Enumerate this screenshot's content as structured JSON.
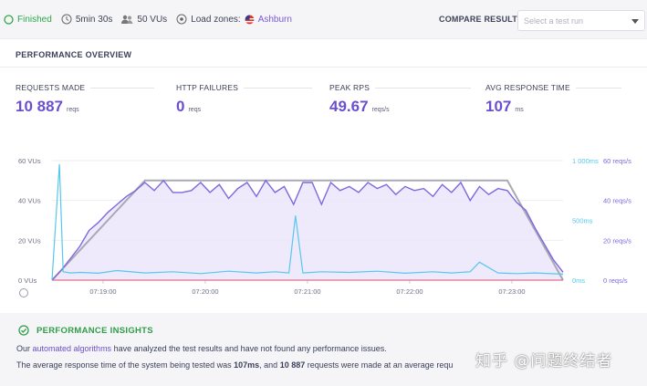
{
  "topbar": {
    "status": "Finished",
    "duration": "5min 30s",
    "vus": "50 VUs",
    "load_zones_label": "Load zones:",
    "load_zone": "Ashburn",
    "compare_label": "COMPARE RESULT",
    "select_placeholder": "Select a test run"
  },
  "overview": {
    "title": "PERFORMANCE OVERVIEW",
    "metrics": [
      {
        "label": "REQUESTS MADE",
        "value": "10 887",
        "unit": "reqs"
      },
      {
        "label": "HTTP FAILURES",
        "value": "0",
        "unit": "reqs"
      },
      {
        "label": "PEAK RPS",
        "value": "49.67",
        "unit": "reqs/s"
      },
      {
        "label": "AVG RESPONSE TIME",
        "value": "107",
        "unit": "ms"
      }
    ]
  },
  "colors": {
    "vus": "#a9a9b5",
    "rps": "#7f67dd",
    "response": "#55c8ec",
    "failures": "#e46f8a",
    "accent": "#6b4fcf",
    "success": "#2fa64b"
  },
  "chart_data": {
    "type": "line",
    "x_ticks": [
      "07:19:00",
      "07:20:00",
      "07:21:00",
      "07:22:00",
      "07:23:00"
    ],
    "y_left_ticks": [
      "0 VUs",
      "20 VUs",
      "40 VUs",
      "60 VUs"
    ],
    "y_right_ms_ticks": [
      "0ms",
      "500ms",
      "1 000ms"
    ],
    "y_right_rps_ticks": [
      "0 reqs/s",
      "20 reqs/s",
      "40 reqs/s",
      "60 reqs/s"
    ],
    "series": [
      {
        "key": "vus",
        "axis": "vus",
        "x": [
          0,
          1.0,
          3.5,
          4.9,
          5.5
        ],
        "values": [
          0,
          50,
          50,
          50,
          0
        ]
      },
      {
        "key": "rps",
        "axis": "rps",
        "x": [
          0,
          0.1,
          0.2,
          0.3,
          0.4,
          0.5,
          0.6,
          0.7,
          0.8,
          0.9,
          1.0,
          1.1,
          1.2,
          1.3,
          1.4,
          1.5,
          1.6,
          1.7,
          1.8,
          1.9,
          2.0,
          2.1,
          2.2,
          2.3,
          2.4,
          2.5,
          2.6,
          2.7,
          2.8,
          2.9,
          3.0,
          3.1,
          3.2,
          3.3,
          3.4,
          3.5,
          3.6,
          3.7,
          3.8,
          3.9,
          4.0,
          4.1,
          4.2,
          4.3,
          4.4,
          4.5,
          4.6,
          4.7,
          4.8,
          4.9,
          5.0,
          5.1,
          5.2,
          5.3,
          5.4,
          5.5
        ],
        "values": [
          0,
          5,
          11,
          17,
          25,
          29,
          34,
          38,
          42,
          45,
          49,
          45,
          50,
          44,
          44,
          45,
          49,
          44,
          48,
          41,
          46,
          49,
          42,
          50,
          44,
          47,
          38,
          49,
          49,
          38,
          49,
          45,
          47,
          44,
          49,
          46,
          48,
          43,
          47,
          45,
          46,
          42,
          48,
          44,
          49,
          40,
          47,
          43,
          46,
          45,
          39,
          35,
          26,
          18,
          10,
          4
        ]
      },
      {
        "key": "response",
        "axis": "ms",
        "x": [
          0.0,
          0.08,
          0.12,
          0.2,
          0.3,
          0.5,
          0.7,
          1.0,
          1.3,
          1.6,
          1.9,
          2.2,
          2.4,
          2.55,
          2.62,
          2.7,
          2.9,
          3.2,
          3.5,
          3.8,
          4.1,
          4.3,
          4.5,
          4.6,
          4.8,
          5.0,
          5.2,
          5.5
        ],
        "values": [
          0,
          970,
          70,
          60,
          65,
          58,
          80,
          60,
          70,
          55,
          75,
          60,
          70,
          60,
          540,
          60,
          70,
          65,
          75,
          58,
          70,
          60,
          70,
          150,
          60,
          55,
          60,
          50
        ]
      },
      {
        "key": "failures",
        "axis": "rps",
        "x": [
          0,
          5.5
        ],
        "values": [
          0,
          0
        ]
      }
    ]
  },
  "insights": {
    "title": "PERFORMANCE INSIGHTS",
    "line1_pre": "Our ",
    "line1_link": "automated algorithms",
    "line1_post": " have analyzed the test results and have not found any performance issues.",
    "line2_pre": "The average response time of the system being tested was ",
    "line2_b1": "107ms",
    "line2_mid": ", and ",
    "line2_b2": "10 887",
    "line2_post": " requests were made at an average requ"
  },
  "watermark": "知乎 @问题终结者"
}
